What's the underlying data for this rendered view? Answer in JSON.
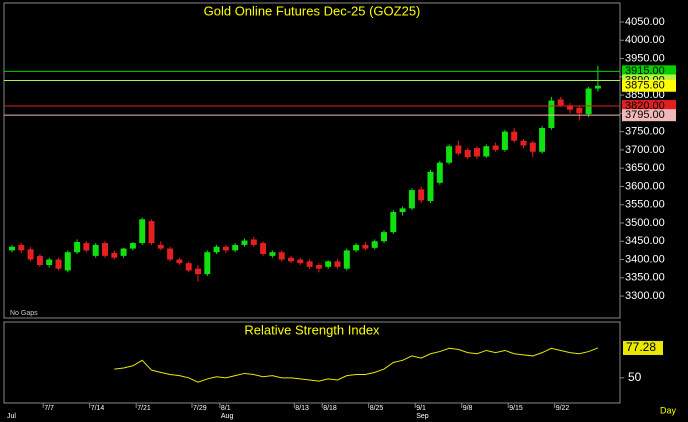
{
  "chart_data": {
    "type": "candlestick",
    "title": "Gold Online Futures Dec-25 (GOZ25)",
    "note": "No Gaps",
    "x_unit": "Day",
    "categories": [
      null,
      null,
      null,
      null,
      "7/7",
      null,
      null,
      null,
      null,
      "7/14",
      null,
      null,
      null,
      null,
      "7/21",
      null,
      null,
      null,
      null,
      null,
      "7/29",
      null,
      null,
      "8/1",
      null,
      null,
      null,
      null,
      null,
      null,
      null,
      "8/13",
      null,
      null,
      "8/18",
      null,
      null,
      null,
      null,
      "8/25",
      null,
      null,
      null,
      null,
      "9/1",
      null,
      null,
      null,
      null,
      "9/8",
      null,
      null,
      null,
      null,
      "9/15",
      null,
      null,
      null,
      null,
      "9/22",
      null,
      null,
      null,
      null
    ],
    "month_labels": [
      "Jul",
      null,
      null,
      null,
      null,
      null,
      null,
      null,
      null,
      null,
      null,
      null,
      null,
      null,
      null,
      null,
      null,
      null,
      null,
      null,
      null,
      null,
      null,
      "Aug",
      null,
      null,
      null,
      null,
      null,
      null,
      null,
      null,
      null,
      null,
      null,
      null,
      null,
      null,
      null,
      null,
      null,
      null,
      null,
      null,
      "Sep",
      null,
      null,
      null,
      null,
      null,
      null,
      null,
      null,
      null,
      null,
      null,
      null,
      null,
      null,
      null,
      null,
      null,
      null,
      null
    ],
    "open": [
      3425,
      3440,
      3428,
      3410,
      3385,
      3400,
      3370,
      3420,
      3445,
      3410,
      3445,
      3418,
      3410,
      3430,
      3445,
      3505,
      3440,
      3430,
      3400,
      3390,
      3375,
      3360,
      3420,
      3435,
      3425,
      3440,
      3455,
      3445,
      3410,
      3420,
      3405,
      3400,
      3395,
      3385,
      3380,
      3395,
      3375,
      3425,
      3440,
      3432,
      3450,
      3475,
      3530,
      3540,
      3592,
      3560,
      3610,
      3665,
      3712,
      3700,
      3705,
      3682,
      3712,
      3700,
      3750,
      3725,
      3720,
      3695,
      3760,
      3838,
      3822,
      3815,
      3798,
      3868
    ],
    "high": [
      3440,
      3445,
      3435,
      3415,
      3405,
      3405,
      3425,
      3455,
      3450,
      3445,
      3450,
      3425,
      3432,
      3448,
      3515,
      3510,
      3450,
      3435,
      3405,
      3395,
      3385,
      3425,
      3440,
      3440,
      3445,
      3458,
      3462,
      3450,
      3425,
      3425,
      3410,
      3405,
      3400,
      3390,
      3398,
      3400,
      3430,
      3445,
      3448,
      3455,
      3480,
      3535,
      3545,
      3595,
      3600,
      3645,
      3670,
      3715,
      3725,
      3705,
      3710,
      3715,
      3720,
      3755,
      3760,
      3730,
      3725,
      3765,
      3845,
      3845,
      3828,
      3820,
      3872,
      3930
    ],
    "low": [
      3420,
      3418,
      3395,
      3380,
      3378,
      3370,
      3365,
      3415,
      3420,
      3405,
      3405,
      3400,
      3405,
      3425,
      3440,
      3440,
      3425,
      3395,
      3385,
      3365,
      3340,
      3355,
      3415,
      3418,
      3420,
      3435,
      3435,
      3410,
      3405,
      3395,
      3390,
      3385,
      3375,
      3365,
      3375,
      3375,
      3370,
      3420,
      3425,
      3428,
      3445,
      3470,
      3520,
      3535,
      3555,
      3555,
      3605,
      3660,
      3685,
      3675,
      3675,
      3678,
      3695,
      3695,
      3720,
      3705,
      3680,
      3690,
      3755,
      3818,
      3800,
      3780,
      3790,
      3860
    ],
    "close": [
      3435,
      3425,
      3400,
      3385,
      3400,
      3375,
      3420,
      3448,
      3425,
      3440,
      3410,
      3405,
      3430,
      3445,
      3510,
      3445,
      3430,
      3400,
      3390,
      3370,
      3360,
      3420,
      3435,
      3425,
      3440,
      3452,
      3440,
      3415,
      3420,
      3400,
      3395,
      3390,
      3380,
      3375,
      3395,
      3380,
      3425,
      3440,
      3430,
      3450,
      3475,
      3530,
      3540,
      3590,
      3562,
      3640,
      3665,
      3710,
      3690,
      3680,
      3682,
      3710,
      3700,
      3750,
      3725,
      3712,
      3695,
      3760,
      3835,
      3822,
      3810,
      3800,
      3868,
      3875.6
    ],
    "up_color": "#11e011",
    "down_color": "#e42020",
    "ylim": [
      3240,
      4102
    ],
    "yticks": [
      {
        "value": 3300,
        "label": "3300.00"
      },
      {
        "value": 3350,
        "label": "3350.00"
      },
      {
        "value": 3400,
        "label": "3400.00"
      },
      {
        "value": 3450,
        "label": "3450.00"
      },
      {
        "value": 3500,
        "label": "3500.00"
      },
      {
        "value": 3550,
        "label": "3550.00"
      },
      {
        "value": 3600,
        "label": "3600.00"
      },
      {
        "value": 3650,
        "label": "3650.00"
      },
      {
        "value": 3700,
        "label": "3700.00"
      },
      {
        "value": 3750,
        "label": "3750.00"
      },
      {
        "value": 3800,
        "label": "3800.00"
      },
      {
        "value": 3850,
        "label": "3850.00"
      },
      {
        "value": 3900,
        "label": "3900.00"
      },
      {
        "value": 3950,
        "label": "3950.00"
      },
      {
        "value": 4000,
        "label": "4000.00"
      },
      {
        "value": 4050,
        "label": "4050.00"
      }
    ],
    "levels": [
      {
        "value": 3915,
        "label": "3915.00",
        "color": "#00d000"
      },
      {
        "value": 3890,
        "label": "3890.00",
        "color": "#b8f040"
      },
      {
        "value": 3820,
        "label": "3820.00",
        "color": "#e02020"
      },
      {
        "value": 3795,
        "label": "3795.00",
        "color": "#f0b8b8"
      }
    ],
    "last": {
      "value": 3875.6,
      "label": "3875.60",
      "color": "#ffff00"
    },
    "rsi": {
      "type": "line",
      "title": "Relative Strength Index",
      "color": "#e8e800",
      "values": [
        null,
        null,
        null,
        null,
        null,
        null,
        null,
        null,
        null,
        null,
        null,
        58,
        59,
        61,
        66,
        57,
        55,
        53,
        52,
        50,
        46,
        49,
        51,
        50,
        52,
        54,
        53,
        51,
        52,
        50,
        50,
        49,
        48,
        47,
        49,
        48,
        52,
        53,
        53,
        55,
        58,
        64,
        66,
        70,
        68,
        72,
        74,
        77,
        76,
        73,
        72,
        75,
        73,
        75,
        72,
        71,
        70,
        73,
        77,
        75,
        73,
        72,
        74,
        77.28
      ],
      "ylim": [
        27,
        101
      ],
      "yticks": [
        50
      ]
    }
  }
}
